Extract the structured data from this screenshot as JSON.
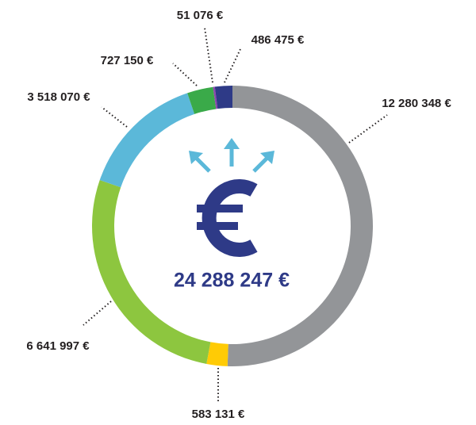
{
  "chart_data": {
    "type": "donut",
    "center_label": "24 288 247 €",
    "categories": [
      null,
      null,
      null,
      null,
      null,
      null,
      null
    ],
    "values": [
      12280348,
      583131,
      6641997,
      3518070,
      727150,
      51076,
      486475
    ],
    "value_labels": [
      "12 280 348 €",
      "583 131 €",
      "6 641 997 €",
      "3 518 070 €",
      "727 150 €",
      "51 076 €",
      "486 475 €"
    ],
    "colors": [
      "#939598",
      "#ffcb05",
      "#8dc63f",
      "#5bb8d9",
      "#3aaa49",
      "#8e44ad",
      "#2e3a87"
    ]
  }
}
